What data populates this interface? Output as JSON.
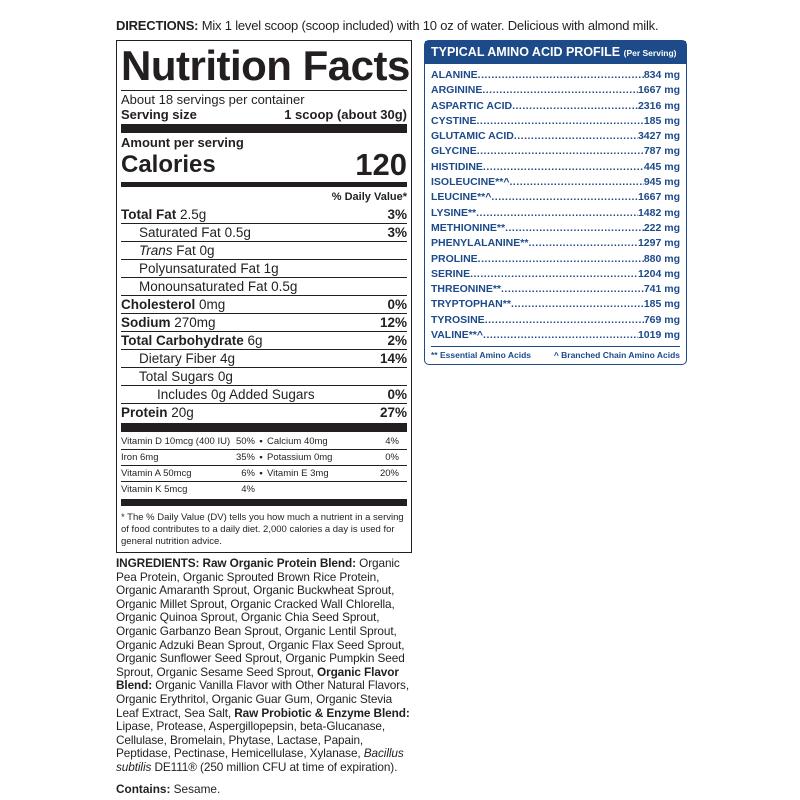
{
  "directions": {
    "label": "DIRECTIONS:",
    "text": " Mix 1 level scoop (scoop included) with 10 oz of water. Delicious with almond milk."
  },
  "facts": {
    "title": "Nutrition Facts",
    "servings_per_container": "About 18 servings per container",
    "serving_size_label": "Serving size",
    "serving_size_value": "1 scoop (about 30g)",
    "amount_per_serving": "Amount per serving",
    "calories_label": "Calories",
    "calories_value": "120",
    "dv_header": "% Daily Value*",
    "nutrients": [
      {
        "name": "Total Fat",
        "amount": "2.5g",
        "dv": "3%",
        "bold": true,
        "indent": 0
      },
      {
        "name": "Saturated Fat",
        "amount": "0.5g",
        "dv": "3%",
        "bold": false,
        "indent": 1
      },
      {
        "name": "Trans",
        "name_suffix": " Fat",
        "amount": "0g",
        "dv": "",
        "bold": false,
        "indent": 1,
        "italic": true
      },
      {
        "name": "Polyunsaturated Fat",
        "amount": "1g",
        "dv": "",
        "bold": false,
        "indent": 1
      },
      {
        "name": "Monounsaturated Fat",
        "amount": "0.5g",
        "dv": "",
        "bold": false,
        "indent": 1
      },
      {
        "name": "Cholesterol",
        "amount": "0mg",
        "dv": "0%",
        "bold": true,
        "indent": 0
      },
      {
        "name": "Sodium",
        "amount": "270mg",
        "dv": "12%",
        "bold": true,
        "indent": 0
      },
      {
        "name": "Total Carbohydrate",
        "amount": "6g",
        "dv": "2%",
        "bold": true,
        "indent": 0
      },
      {
        "name": "Dietary Fiber",
        "amount": "4g",
        "dv": "14%",
        "bold": false,
        "indent": 1
      },
      {
        "name": "Total Sugars",
        "amount": "0g",
        "dv": "",
        "bold": false,
        "indent": 1
      },
      {
        "name": "Includes 0g Added Sugars",
        "amount": "",
        "dv": "0%",
        "bold": false,
        "indent": 2
      },
      {
        "name": "Protein",
        "amount": "20g",
        "dv": "27%",
        "bold": true,
        "indent": 0
      }
    ],
    "vitamins": [
      [
        {
          "name": "Vitamin D 10mcg (400 IU)",
          "dv": "50%"
        },
        {
          "name": "Calcium 40mg",
          "dv": "4%"
        }
      ],
      [
        {
          "name": "Iron 6mg",
          "dv": "35%"
        },
        {
          "name": "Potassium 0mg",
          "dv": "0%"
        }
      ],
      [
        {
          "name": "Vitamin A 50mcg",
          "dv": "6%"
        },
        {
          "name": "Vitamin E 3mg",
          "dv": "20%"
        }
      ],
      [
        {
          "name": "Vitamin K 5mcg",
          "dv": "4%"
        }
      ]
    ],
    "footnote": "* The % Daily Value (DV) tells you how much a nutrient in a serving of food contributes to a daily diet. 2,000 calories a day is used for general nutrition advice."
  },
  "ingredients": [
    {
      "t": "INGREDIENTS: Raw Organic Protein Blend:",
      "b": true
    },
    {
      "t": " Organic Pea Protein, Organic Sprouted Brown Rice Protein, Organic Amaranth Sprout, Organic Buckwheat Sprout, Organic Millet Sprout, Organic Cracked Wall Chlorella, Organic Quinoa Sprout, Organic Chia Seed Sprout, Organic Garbanzo Bean Sprout, Organic Lentil Sprout, Organic Adzuki Bean Sprout, Organic Flax Seed Sprout, Organic Sunflower Seed Sprout, Organic Pumpkin Seed Sprout, Organic Sesame Seed Sprout, "
    },
    {
      "t": "Organic Flavor Blend:",
      "b": true
    },
    {
      "t": " Organic Vanilla Flavor with Other Natural Flavors, Organic Erythritol, Organic Guar Gum, Organic Stevia Leaf Extract, Sea Salt, "
    },
    {
      "t": "Raw Probiotic & Enzyme Blend:",
      "b": true
    },
    {
      "t": " Lipase, Protease, Aspergillopepsin, beta-Glucanase, Cellulase, Bromelain, Phytase, Lactase, Papain, Peptidase, Pectinase, Hemicellulase, Xylanase, "
    },
    {
      "t": "Bacillus subtilis",
      "i": true
    },
    {
      "t": " DE111® (250 million CFU at time of expiration)."
    }
  ],
  "contains": {
    "label": "Contains:",
    "text": " Sesame."
  },
  "amino": {
    "title": "TYPICAL AMINO ACID PROFILE",
    "subtitle": "(Per Serving)",
    "color": "#1d4a89",
    "items": [
      {
        "name": "ALANINE",
        "value": "834 mg"
      },
      {
        "name": "ARGININE",
        "value": "1667 mg"
      },
      {
        "name": "ASPARTIC ACID",
        "value": "2316 mg"
      },
      {
        "name": "CYSTINE",
        "value": "185 mg"
      },
      {
        "name": "GLUTAMIC ACID",
        "value": "3427 mg"
      },
      {
        "name": "GLYCINE",
        "value": "787 mg"
      },
      {
        "name": "HISTIDINE",
        "value": "445 mg"
      },
      {
        "name": "ISOLEUCINE**^",
        "value": "945 mg"
      },
      {
        "name": "LEUCINE**^",
        "value": "1667 mg"
      },
      {
        "name": "LYSINE**",
        "value": "1482 mg"
      },
      {
        "name": "METHIONINE**",
        "value": "222 mg"
      },
      {
        "name": "PHENYLALANINE**",
        "value": "1297 mg"
      },
      {
        "name": "PROLINE",
        "value": "880 mg"
      },
      {
        "name": "SERINE",
        "value": "1204 mg"
      },
      {
        "name": "THREONINE**",
        "value": "741 mg"
      },
      {
        "name": "TRYPTOPHAN**",
        "value": "185 mg"
      },
      {
        "name": "TYROSINE",
        "value": "769 mg"
      },
      {
        "name": "VALINE**^",
        "value": "1019 mg"
      }
    ],
    "legend_essential": "** Essential Amino Acids",
    "legend_bcaa": "^ Branched Chain Amino Acids"
  }
}
